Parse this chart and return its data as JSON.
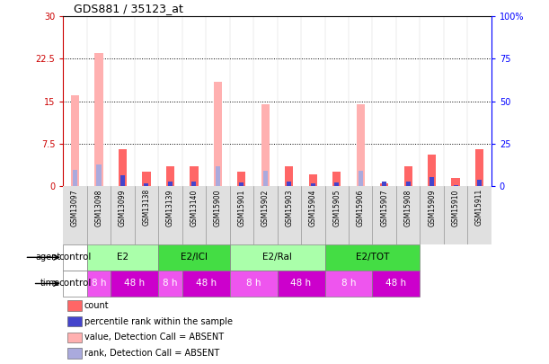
{
  "title": "GDS881 / 35123_at",
  "samples": [
    "GSM13097",
    "GSM13098",
    "GSM13099",
    "GSM13138",
    "GSM13139",
    "GSM13140",
    "GSM15900",
    "GSM15901",
    "GSM15902",
    "GSM15903",
    "GSM15904",
    "GSM15905",
    "GSM15906",
    "GSM15907",
    "GSM15908",
    "GSM15909",
    "GSM15910",
    "GSM15911"
  ],
  "count_values": [
    16.0,
    23.5,
    6.5,
    2.5,
    3.5,
    3.5,
    18.5,
    2.5,
    14.5,
    3.5,
    2.0,
    2.5,
    14.5,
    0.5,
    3.5,
    5.5,
    1.5,
    6.5
  ],
  "rank_values": [
    9.5,
    12.5,
    6.5,
    1.5,
    2.5,
    2.5,
    11.5,
    2.0,
    9.0,
    2.5,
    1.5,
    2.0,
    9.0,
    2.5,
    2.5,
    5.5,
    0.5,
    3.5
  ],
  "ylim_left": [
    0,
    30
  ],
  "ylim_right": [
    0,
    100
  ],
  "yticks_left": [
    0,
    7.5,
    15,
    22.5,
    30
  ],
  "yticks_right": [
    0,
    25,
    50,
    75,
    100
  ],
  "ytick_labels_left": [
    "0",
    "7.5",
    "15",
    "22.5",
    "30"
  ],
  "ytick_labels_right": [
    "0",
    "25",
    "50",
    "75",
    "100%"
  ],
  "color_count": "#FF6666",
  "color_rank": "#4444CC",
  "color_count_absent": "#FFB0B0",
  "color_rank_absent": "#AAAADD",
  "absent_mask": [
    true,
    true,
    false,
    false,
    false,
    false,
    true,
    false,
    true,
    false,
    false,
    false,
    true,
    false,
    false,
    false,
    false,
    false
  ],
  "agent_groups": [
    {
      "label": "control",
      "start": 0,
      "end": 1,
      "color": "#FFFFFF"
    },
    {
      "label": "E2",
      "start": 1,
      "end": 4,
      "color": "#AAFFAA"
    },
    {
      "label": "E2/ICI",
      "start": 4,
      "end": 7,
      "color": "#44DD44"
    },
    {
      "label": "E2/Ral",
      "start": 7,
      "end": 11,
      "color": "#AAFFAA"
    },
    {
      "label": "E2/TOT",
      "start": 11,
      "end": 15,
      "color": "#44DD44"
    }
  ],
  "time_groups": [
    {
      "label": "control",
      "start": 0,
      "end": 1,
      "color": "#FFFFFF"
    },
    {
      "label": "8 h",
      "start": 1,
      "end": 2,
      "color": "#EE55EE"
    },
    {
      "label": "48 h",
      "start": 2,
      "end": 4,
      "color": "#CC00CC"
    },
    {
      "label": "8 h",
      "start": 4,
      "end": 5,
      "color": "#EE55EE"
    },
    {
      "label": "48 h",
      "start": 5,
      "end": 7,
      "color": "#CC00CC"
    },
    {
      "label": "8 h",
      "start": 7,
      "end": 9,
      "color": "#EE55EE"
    },
    {
      "label": "48 h",
      "start": 9,
      "end": 11,
      "color": "#CC00CC"
    },
    {
      "label": "8 h",
      "start": 11,
      "end": 13,
      "color": "#EE55EE"
    },
    {
      "label": "48 h",
      "start": 13,
      "end": 15,
      "color": "#CC00CC"
    }
  ],
  "legend_items": [
    {
      "label": "count",
      "color": "#FF6666"
    },
    {
      "label": "percentile rank within the sample",
      "color": "#4444CC"
    },
    {
      "label": "value, Detection Call = ABSENT",
      "color": "#FFB0B0"
    },
    {
      "label": "rank, Detection Call = ABSENT",
      "color": "#AAAADD"
    }
  ],
  "bg_color": "#FFFFFF",
  "bar_width": 0.35
}
